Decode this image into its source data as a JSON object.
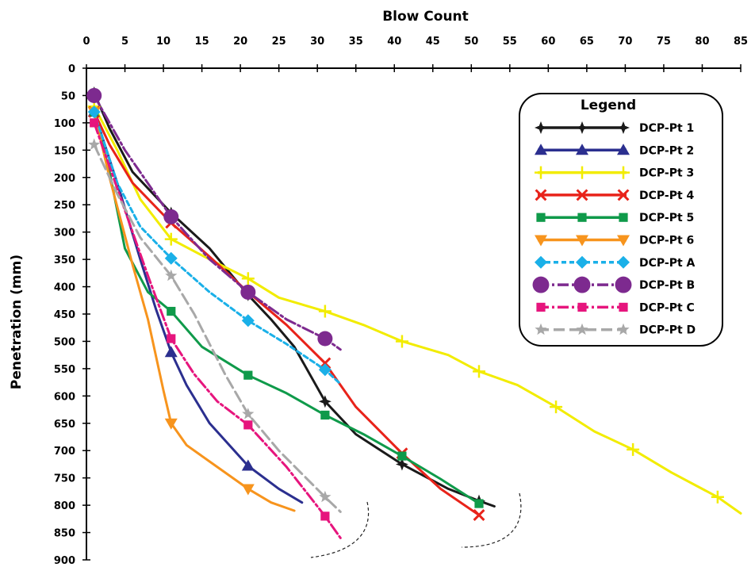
{
  "chart_data": {
    "type": "line",
    "xlabel": "Blow Count",
    "ylabel": "Penetration (mm)",
    "xlim": [
      0,
      85
    ],
    "ylim": [
      0,
      900
    ],
    "y_inverted": true,
    "x_axis_position": "top",
    "x_ticks": [
      0,
      5,
      10,
      15,
      20,
      25,
      30,
      35,
      40,
      45,
      50,
      55,
      60,
      65,
      70,
      75,
      80,
      85
    ],
    "y_ticks": [
      0,
      50,
      100,
      150,
      200,
      250,
      300,
      350,
      400,
      450,
      500,
      550,
      600,
      650,
      700,
      750,
      800,
      850,
      900
    ],
    "grid": false,
    "legend": {
      "title": "Legend",
      "position": "top-right"
    },
    "series": [
      {
        "name": "DCP-Pt 1",
        "color": "#1a1a1a",
        "marker": "star4",
        "dash": "",
        "x": [
          1,
          3,
          6,
          11,
          16,
          21,
          24,
          27,
          31,
          35,
          41,
          47,
          51,
          53
        ],
        "y": [
          45,
          110,
          190,
          265,
          330,
          415,
          460,
          510,
          610,
          670,
          725,
          770,
          792,
          802
        ]
      },
      {
        "name": "DCP-Pt 2",
        "color": "#2b2f8f",
        "marker": "triangle-up",
        "dash": "",
        "x": [
          1,
          4,
          7,
          9,
          11,
          13,
          16,
          21,
          25,
          28
        ],
        "y": [
          80,
          210,
          350,
          440,
          520,
          580,
          650,
          728,
          770,
          795
        ]
      },
      {
        "name": "DCP-Pt 3",
        "color": "#f2ec00",
        "marker": "plus",
        "dash": "",
        "x": [
          1,
          4,
          7,
          11,
          16,
          21,
          25,
          31,
          36,
          41,
          47,
          51,
          56,
          61,
          66,
          71,
          76,
          82,
          85
        ],
        "y": [
          70,
          150,
          240,
          313,
          350,
          385,
          420,
          445,
          470,
          500,
          525,
          555,
          580,
          620,
          665,
          698,
          740,
          785,
          815
        ]
      },
      {
        "name": "DCP-Pt 4",
        "color": "#e8231a",
        "marker": "x",
        "dash": "",
        "x": [
          1,
          3,
          6,
          11,
          16,
          21,
          26,
          31,
          35,
          41,
          46,
          51
        ],
        "y": [
          80,
          140,
          210,
          283,
          345,
          410,
          470,
          540,
          620,
          705,
          770,
          818
        ]
      },
      {
        "name": "DCP-Pt 5",
        "color": "#0f9a4a",
        "marker": "square",
        "dash": "",
        "x": [
          1,
          3,
          5,
          8,
          11,
          15,
          21,
          26,
          31,
          36,
          41,
          46,
          51
        ],
        "y": [
          80,
          190,
          330,
          410,
          445,
          510,
          562,
          595,
          635,
          670,
          710,
          752,
          797
        ]
      },
      {
        "name": "DCP-Pt 6",
        "color": "#f7941d",
        "marker": "triangle-down",
        "dash": "",
        "x": [
          1,
          3,
          6,
          8,
          10,
          11,
          13,
          16,
          21,
          24,
          27
        ],
        "y": [
          80,
          200,
          360,
          460,
          590,
          650,
          690,
          720,
          770,
          795,
          810
        ]
      },
      {
        "name": "DCP-Pt A",
        "color": "#1ab0e8",
        "marker": "diamond",
        "dash": "6 4",
        "x": [
          1,
          4,
          7,
          11,
          16,
          21,
          26,
          31,
          33
        ],
        "y": [
          80,
          210,
          290,
          348,
          410,
          462,
          505,
          552,
          578
        ]
      },
      {
        "name": "DCP-Pt B",
        "color": "#7d2a8f",
        "marker": "circle",
        "dash": "14 4 3 4",
        "x": [
          1,
          5,
          11,
          16,
          21,
          26,
          31,
          33
        ],
        "y": [
          50,
          150,
          272,
          350,
          410,
          460,
          495,
          515
        ]
      },
      {
        "name": "DCP-Pt C",
        "color": "#e6157d",
        "marker": "square",
        "dash": "14 4 3 4",
        "x": [
          1,
          3,
          5,
          8,
          11,
          14,
          17,
          21,
          26,
          31,
          33
        ],
        "y": [
          100,
          180,
          260,
          380,
          495,
          560,
          610,
          653,
          730,
          820,
          860
        ]
      },
      {
        "name": "DCP-Pt D",
        "color": "#a8a8a8",
        "marker": "star5",
        "dash": "14 6",
        "x": [
          1,
          4,
          7,
          11,
          14,
          18,
          21,
          25,
          31,
          33
        ],
        "y": [
          140,
          230,
          310,
          380,
          450,
          560,
          633,
          700,
          785,
          812
        ]
      }
    ]
  }
}
